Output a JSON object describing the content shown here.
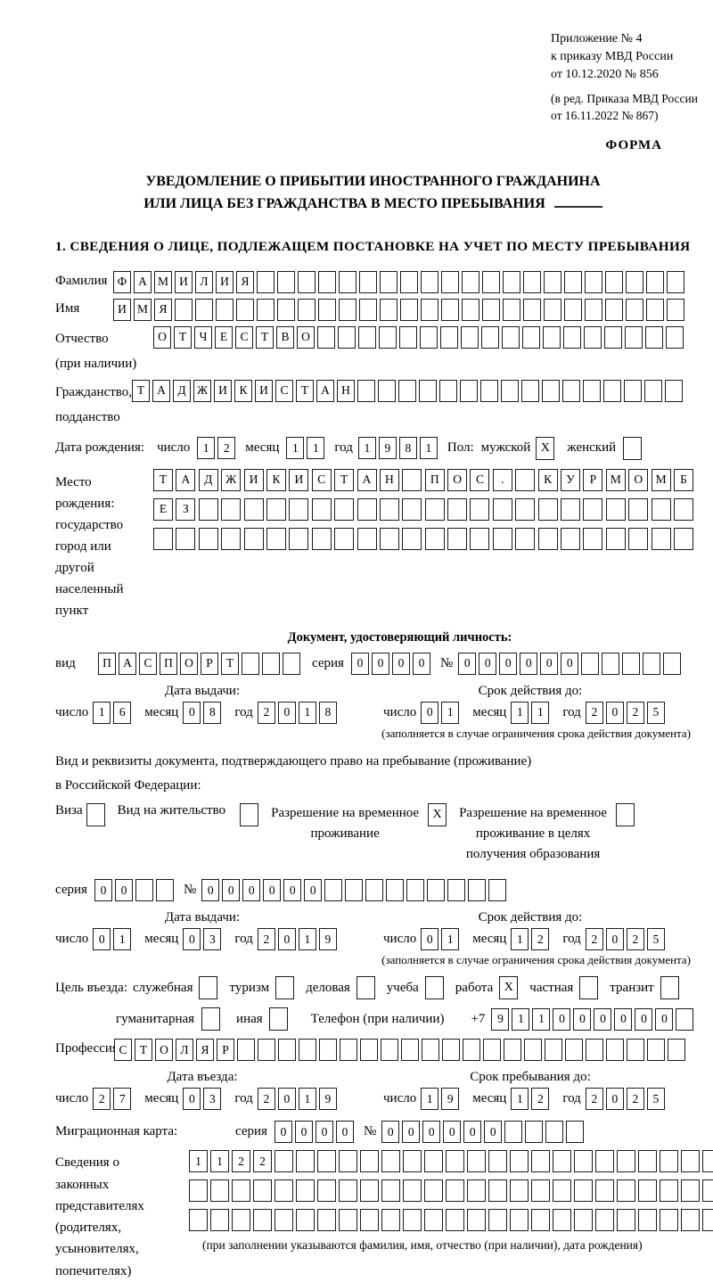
{
  "header": {
    "annex_lines": [
      "Приложение № 4",
      "к приказу МВД России",
      "от 10.12.2020 № 856"
    ],
    "edit_lines": [
      "(в ред. Приказа МВД России",
      "от 16.11.2022 № 867)"
    ],
    "form_label": "ФОРМА"
  },
  "title": {
    "line1": "УВЕДОМЛЕНИЕ О ПРИБЫТИИ ИНОСТРАННОГО ГРАЖДАНИНА",
    "line2": "ИЛИ ЛИЦА БЕЗ ГРАЖДАНСТВА В МЕСТО ПРЕБЫВАНИЯ"
  },
  "section1_heading": "1. СВЕДЕНИЯ О ЛИЦЕ, ПОДЛЕЖАЩЕМ ПОСТАНОВКЕ НА УЧЕТ ПО МЕСТУ ПРЕБЫВАНИЯ",
  "labels": {
    "day": "число",
    "month": "месяц",
    "year": "год",
    "series": "серия",
    "number": "№"
  },
  "fields": {
    "surname": {
      "label": "Фамилия",
      "value": "ФАМИЛИЯ",
      "len": 28
    },
    "name": {
      "label": "Имя",
      "value": "ИМЯ",
      "len": 28
    },
    "patronymic": {
      "label1": "Отчество",
      "label2": "(при наличии)",
      "value": "ОТЧЕСТВО",
      "len": 26
    },
    "citizenship": {
      "label1": "Гражданство,",
      "label2": "подданство",
      "value": "ТАДЖИКИСТАН",
      "len": 27
    },
    "birth_date": {
      "label": "Дата рождения:",
      "day": "12",
      "month": "11",
      "year": "1981"
    },
    "gender": {
      "label": "Пол:",
      "male_label": "мужской",
      "male": "X",
      "female_label": "женский",
      "female": ""
    },
    "birth_place": {
      "label1": "Место рождения:",
      "label2": "государство",
      "label3": "город или другой",
      "label4": "населенный пункт",
      "row1": {
        "value": "ТАДЖИКИСТАН ПОС. КУРМОМБ",
        "len": 24
      },
      "row2": {
        "value": "ЕЗ",
        "len": 24
      },
      "row3": {
        "value": "",
        "len": 24
      }
    }
  },
  "identity_doc": {
    "header": "Документ, удостоверяющий личность:",
    "type": {
      "label": "вид",
      "value": "ПАСПОРТ",
      "len": 10
    },
    "series": {
      "value": "0000",
      "len": 4
    },
    "number": {
      "value": "000000",
      "len": 11
    },
    "issue": {
      "header": "Дата выдачи:",
      "day": "16",
      "month": "08",
      "year": "2018"
    },
    "expiry": {
      "header": "Срок действия до:",
      "day": "01",
      "month": "11",
      "year": "2025"
    }
  },
  "notes": {
    "expiry_note": "(заполняется в случае ограничения срока действия документа)",
    "rep_note": "(при заполнении указываются фамилия, имя, отчество (при наличии), дата рождения)"
  },
  "residence_doc": {
    "intro1": "Вид и реквизиты документа, подтверждающего право на пребывание (проживание)",
    "intro2": "в Российской Федерации:",
    "visa": {
      "label": "Виза",
      "checked": ""
    },
    "residence_permit": {
      "label": "Вид на жительство",
      "checked": ""
    },
    "temp_permit": {
      "line1": "Разрешение на временное",
      "line2": "проживание",
      "checked": "X"
    },
    "edu_permit": {
      "line1": "Разрешение на временное",
      "line2": "проживание в целях",
      "line3": "получения образования",
      "checked": ""
    },
    "series": {
      "value": "00",
      "len": 4
    },
    "number": {
      "value": "000000",
      "len": 15
    },
    "issue": {
      "header": "Дата выдачи:",
      "day": "01",
      "month": "03",
      "year": "2019"
    },
    "expiry": {
      "header": "Срок действия до:",
      "day": "01",
      "month": "12",
      "year": "2025"
    }
  },
  "purpose": {
    "label": "Цель въезда:",
    "options": [
      {
        "label": "служебная",
        "checked": ""
      },
      {
        "label": "туризм",
        "checked": ""
      },
      {
        "label": "деловая",
        "checked": ""
      },
      {
        "label": "учеба",
        "checked": ""
      },
      {
        "label": "работа",
        "checked": "X"
      },
      {
        "label": "частная",
        "checked": ""
      },
      {
        "label": "транзит",
        "checked": ""
      },
      {
        "label": "гуманитарная",
        "checked": ""
      },
      {
        "label": "иная",
        "checked": ""
      }
    ]
  },
  "phone": {
    "label": "Телефон (при наличии)",
    "prefix": "+7",
    "value": "911000000",
    "len": 10
  },
  "profession": {
    "label": "Профессия",
    "value": "СТОЛЯР",
    "len": 28
  },
  "entry": {
    "issue": {
      "header": "Дата въезда:",
      "day": "27",
      "month": "03",
      "year": "2019"
    },
    "expiry": {
      "header": "Срок пребывания до:",
      "day": "19",
      "month": "12",
      "year": "2025"
    }
  },
  "migration_card": {
    "label": "Миграционная карта:",
    "series": {
      "value": "0000",
      "len": 4
    },
    "number": {
      "value": "000000",
      "len": 10
    }
  },
  "representatives": {
    "label1": "Сведения о",
    "label2": "законных",
    "label3": "представителях",
    "label4": "(родителях,",
    "label5": "усыновителях,",
    "label6": "попечителях)",
    "row1": {
      "value": "1122",
      "len": 27
    },
    "row2": {
      "value": "",
      "len": 27
    },
    "row3": {
      "value": "",
      "len": 27
    }
  }
}
